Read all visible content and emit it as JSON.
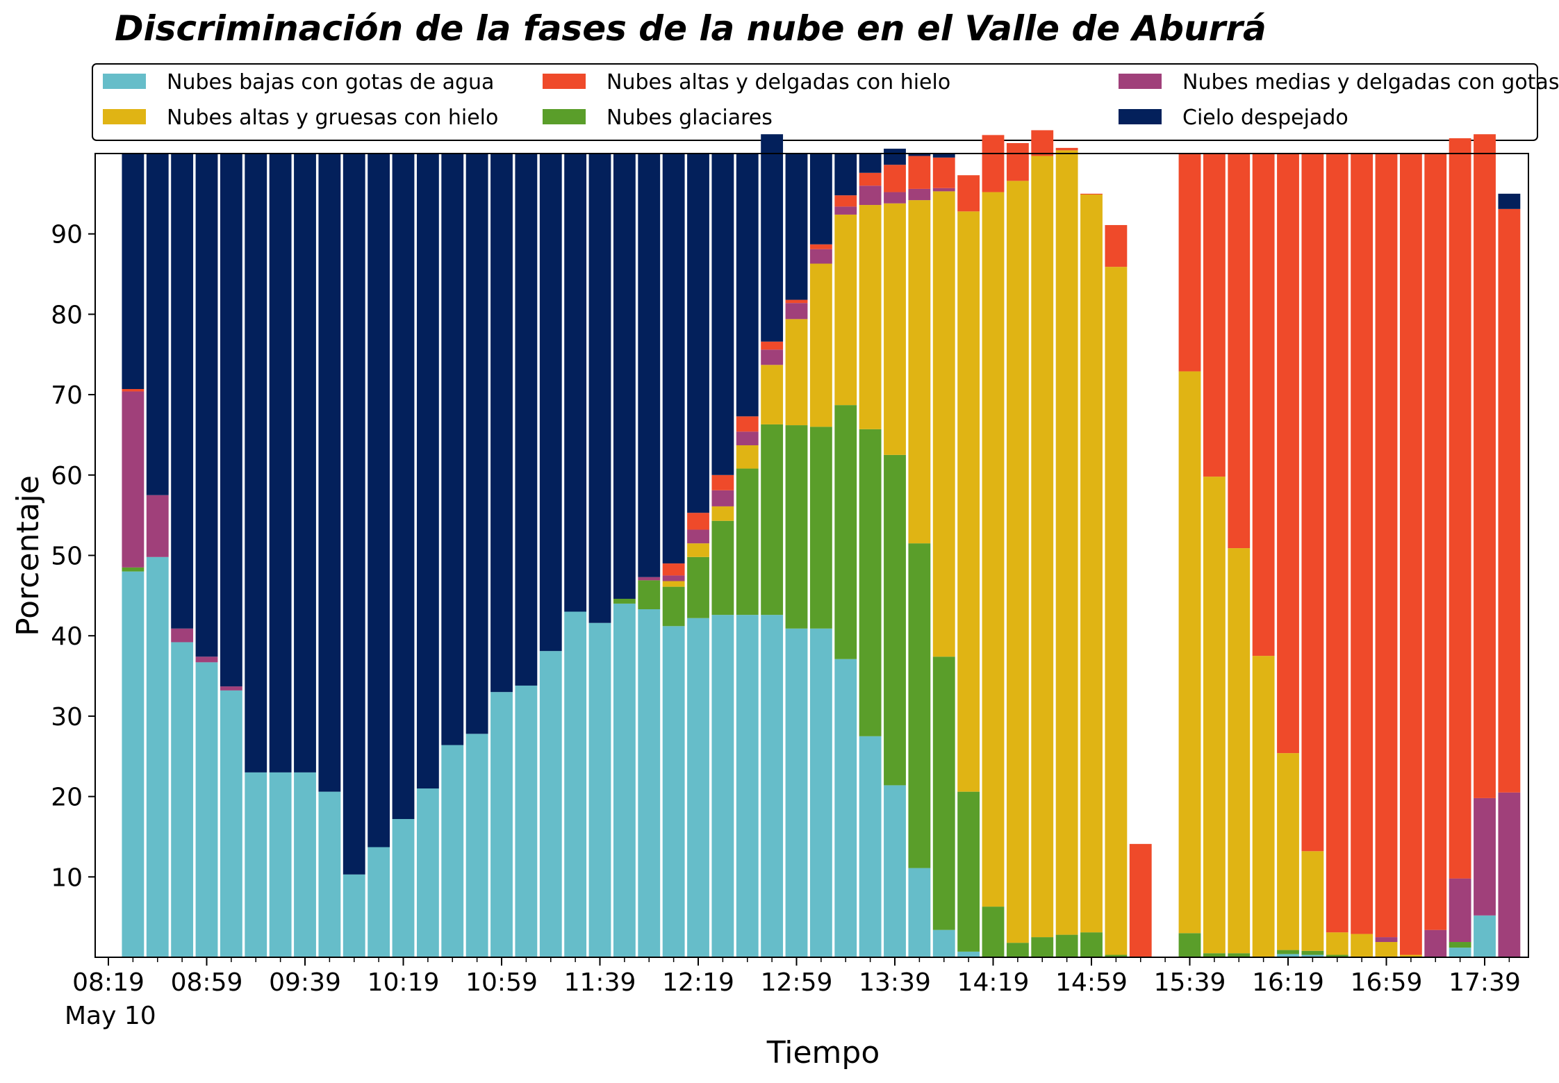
{
  "chart_data": {
    "type": "bar",
    "stacked": true,
    "title": "Discriminación de la fases de la nube en el Valle de Aburrá",
    "xlabel": "Tiempo",
    "ylabel": "Porcentaje",
    "ylim": [
      0,
      100
    ],
    "yticks": [
      10,
      20,
      30,
      40,
      50,
      60,
      70,
      80,
      90
    ],
    "xticks": [
      "08:19",
      "08:59",
      "09:39",
      "10:19",
      "10:59",
      "11:39",
      "12:19",
      "12:59",
      "13:39",
      "14:19",
      "14:59",
      "15:39",
      "16:19",
      "16:59",
      "17:39"
    ],
    "x_date_label": "May 10",
    "grid": false,
    "legend_position": "top",
    "categories": [
      "08:29",
      "08:39",
      "08:49",
      "08:59",
      "09:09",
      "09:19",
      "09:29",
      "09:39",
      "09:49",
      "09:59",
      "10:09",
      "10:19",
      "10:29",
      "10:39",
      "10:49",
      "10:59",
      "11:09",
      "11:19",
      "11:29",
      "11:39",
      "11:49",
      "11:59",
      "12:09",
      "12:19",
      "12:29",
      "12:39",
      "12:49",
      "12:59",
      "13:09",
      "13:19",
      "13:29",
      "13:39",
      "13:49",
      "13:59",
      "14:09",
      "14:19",
      "14:29",
      "14:39",
      "14:49",
      "14:59",
      "15:09",
      "15:19",
      "15:29",
      "15:39",
      "15:49",
      "15:59",
      "16:09",
      "16:19",
      "16:29",
      "16:39",
      "16:49",
      "16:59",
      "17:09",
      "17:19",
      "17:29",
      "17:39",
      "17:49"
    ],
    "series": [
      {
        "name": "Nubes bajas con gotas de agua",
        "color": "#66bdc9",
        "values": [
          48,
          49.8,
          39.2,
          36.7,
          33.2,
          23,
          23,
          23,
          20.6,
          10.3,
          13.7,
          17.2,
          21,
          26.4,
          27.8,
          33,
          33.8,
          38.1,
          43,
          41.6,
          44,
          43.3,
          41.2,
          42.2,
          42.6,
          42.6,
          42.6,
          40.9,
          40.9,
          37.1,
          27.5,
          21.4,
          11.1,
          3.4,
          0.7,
          0,
          0,
          0,
          0,
          0,
          0,
          0,
          0,
          0,
          0,
          0,
          0,
          0.4,
          0.3,
          0,
          0,
          0,
          0,
          0,
          1.2,
          5.2,
          null
        ]
      },
      {
        "name": "Nubes glaciares",
        "color": "#5a9e2a",
        "values": [
          0.5,
          0,
          0,
          0,
          0,
          0,
          0,
          0,
          0,
          0,
          0,
          0,
          0,
          0,
          0,
          0,
          0,
          0,
          0,
          0,
          0.6,
          3.6,
          4.9,
          7.6,
          11.7,
          18.2,
          23.7,
          25.3,
          25.1,
          31.6,
          38.2,
          41.1,
          40.4,
          34,
          19.9,
          6.3,
          1.8,
          2.5,
          2.8,
          3.1,
          0.3,
          0,
          0,
          3,
          0.5,
          0.5,
          0,
          0.5,
          0.5,
          0.3,
          0,
          0,
          0,
          0,
          0.7,
          0,
          null
        ]
      },
      {
        "name": "Nubes altas y gruesas con hielo",
        "color": "#e0b414",
        "values": [
          0,
          0,
          0,
          0,
          0,
          0,
          0,
          0,
          0,
          0,
          0,
          0,
          0,
          0,
          0,
          0,
          0,
          0,
          0,
          0,
          0,
          0,
          0.7,
          1.7,
          1.8,
          2.9,
          7.4,
          13.2,
          20.3,
          23.7,
          27.9,
          31.3,
          42.7,
          57.9,
          72.2,
          88.9,
          94.8,
          97.2,
          97.6,
          91.8,
          85.6,
          0,
          0,
          69.9,
          59.3,
          50.4,
          37.5,
          24.5,
          12.4,
          2.8,
          2.9,
          1.9,
          0.3,
          0,
          0,
          0,
          null
        ]
      },
      {
        "name": "Nubes medias y delgadas con gotas de agua",
        "color": "#a0407a",
        "values": [
          21.9,
          7.7,
          1.7,
          0.7,
          0.5,
          0,
          0,
          0,
          0,
          0,
          0,
          0,
          0,
          0,
          0,
          0,
          0,
          0,
          0,
          0,
          0,
          0.4,
          0.7,
          1.7,
          2,
          1.7,
          1.9,
          2,
          1.8,
          1,
          2.4,
          1.4,
          1.4,
          0.4,
          0,
          0,
          0,
          0,
          0,
          0,
          0,
          0,
          0,
          0,
          0,
          0,
          0,
          0,
          0,
          0,
          0,
          0.6,
          0,
          3.4,
          7.9,
          14.6,
          20.5
        ]
      },
      {
        "name": "Nubes altas y delgadas con hielo",
        "color": "#ef4a2a",
        "values": [
          0.3,
          0,
          0,
          0,
          0,
          0,
          0,
          0,
          0,
          0,
          0,
          0,
          0,
          0,
          0,
          0,
          0,
          0,
          0,
          0,
          0,
          0,
          1.5,
          2.1,
          1.9,
          1.9,
          1,
          0.4,
          0.6,
          1.4,
          1.6,
          3.4,
          4.1,
          3.8,
          4.5,
          7.1,
          4.7,
          3.2,
          0.3,
          0.1,
          5.2,
          14.1,
          0,
          27.1,
          40.2,
          49.1,
          62.5,
          74.6,
          86.8,
          96.9,
          97.1,
          97.5,
          99.7,
          96.6,
          92.1,
          82.6,
          72.6
        ]
      },
      {
        "name": "Cielo despejado",
        "color": "#03205b",
        "values": [
          29.3,
          42.5,
          59.1,
          62.6,
          66.3,
          77,
          77,
          77,
          79.4,
          89.7,
          86.3,
          82.8,
          79,
          73.6,
          72.2,
          67,
          66.2,
          61.9,
          57,
          58.4,
          55.4,
          52.7,
          51,
          44.7,
          40,
          32.7,
          25.8,
          18.2,
          11.3,
          5.2,
          2.4,
          2,
          0.3,
          0.5,
          0,
          0,
          0,
          0,
          0,
          0,
          0,
          0,
          0,
          0,
          0,
          0,
          0,
          0,
          0,
          0,
          0,
          0,
          0,
          0,
          0,
          0,
          1.9
        ]
      }
    ]
  }
}
